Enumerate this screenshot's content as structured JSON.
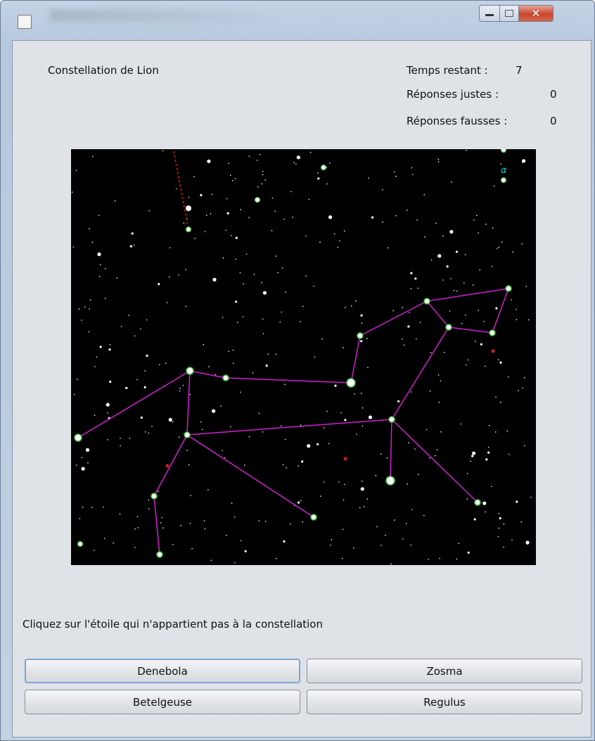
{
  "header": {
    "constellation": "Constellation de Lion"
  },
  "stats": {
    "time_label": "Temps restant :",
    "time_value": 7,
    "correct_label": "Réponses justes :",
    "correct_value": 0,
    "wrong_label": "Réponses fausses :",
    "wrong_value": 0
  },
  "sky": {
    "label": "α"
  },
  "instruction": "Cliquez sur l'étoile qui n'appartient pas à la constellation",
  "choices": [
    "Denebola",
    "Zosma",
    "Betelgeuse",
    "Regulus"
  ]
}
